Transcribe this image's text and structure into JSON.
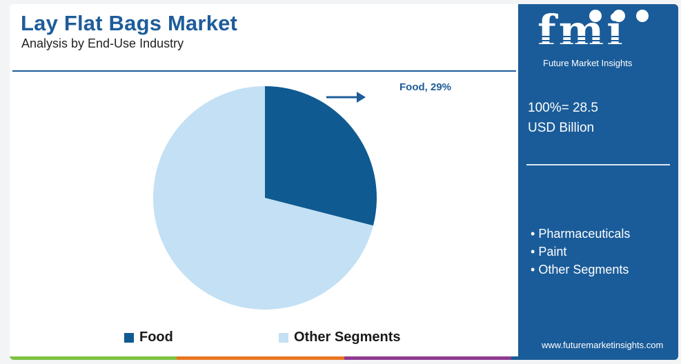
{
  "header": {
    "title": "Lay Flat Bags Market",
    "subtitle": "Analysis by End-Use Industry"
  },
  "chart_data": {
    "type": "pie",
    "title": "Lay Flat Bags Market",
    "slices": [
      {
        "name": "Food",
        "value": 29,
        "color": "#0f5a91"
      },
      {
        "name": "Other Segments",
        "value": 71,
        "color": "#c3e0f4"
      }
    ],
    "annotation": "Food, 29%",
    "legend": [
      "Food",
      "Other Segments"
    ],
    "legend_position": "bottom"
  },
  "panel": {
    "logo_text": "fmi",
    "logo_subtext": "Future Market Insights",
    "total_line1": "100%= 28.5",
    "total_line2": "USD Billion",
    "other_segments": [
      "Pharmaceuticals",
      "Paint",
      "Other Segments"
    ],
    "website": "www.futuremarketinsights.com",
    "bg_color": "#1a5c99"
  },
  "bottom_bar_colors": [
    "#7cc242",
    "#e87722",
    "#8e3b8f",
    "#1a5c99"
  ]
}
